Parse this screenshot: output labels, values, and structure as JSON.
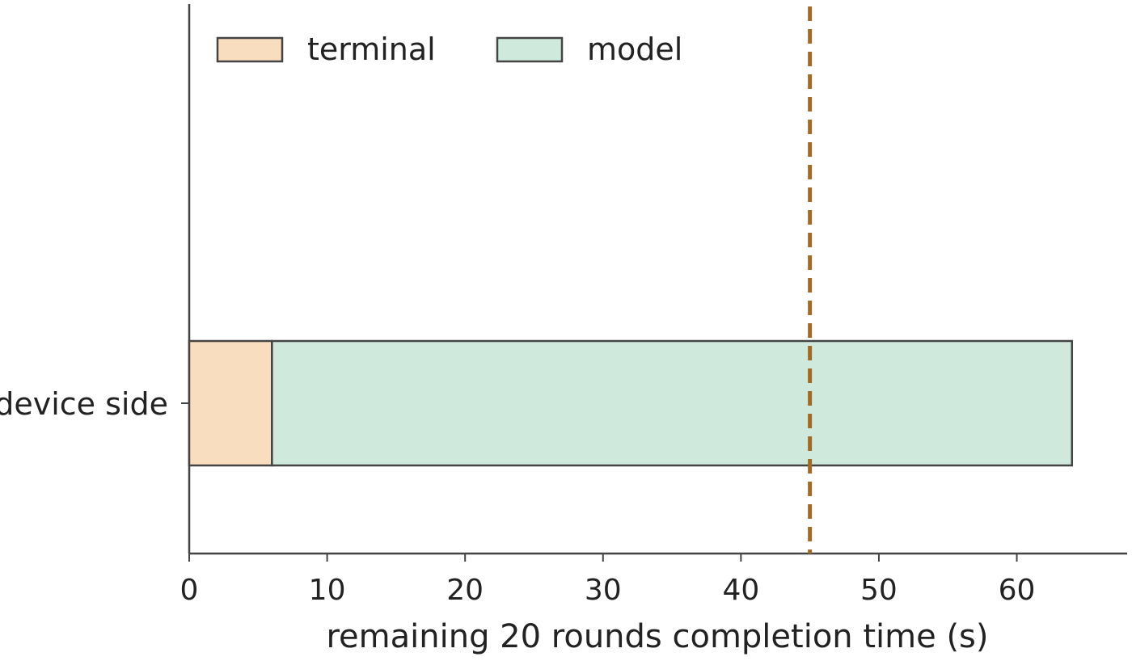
{
  "chart_data": {
    "type": "bar",
    "orientation": "horizontal",
    "stacked": true,
    "title": "",
    "xlabel": "remaining 20 rounds completion time (s)",
    "ylabel": "",
    "xlim": [
      0,
      68
    ],
    "xticks": [
      0,
      10,
      20,
      30,
      40,
      50,
      60
    ],
    "categories": [
      "device side"
    ],
    "series": [
      {
        "name": "terminal",
        "values": [
          6
        ],
        "color": "#f8ddbf"
      },
      {
        "name": "model",
        "values": [
          58
        ],
        "color": "#d0e9dd"
      }
    ],
    "reference_line": {
      "x": 45,
      "style": "dashed",
      "color": "#a06a28"
    },
    "legend": {
      "placement": "top-left",
      "columns": 2
    },
    "grid": false
  }
}
